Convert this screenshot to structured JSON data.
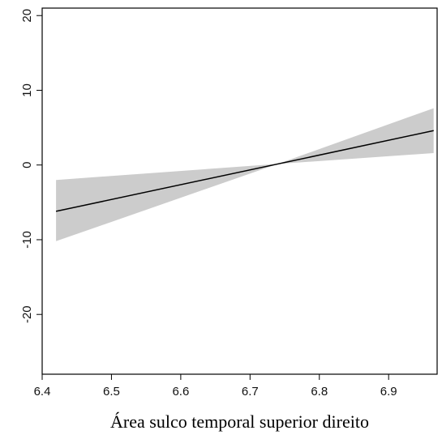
{
  "chart_data": {
    "type": "line",
    "title": "",
    "xlabel": "Área sulco temporal superior direito",
    "ylabel": "",
    "xlim": [
      6.4,
      6.97
    ],
    "ylim": [
      -28,
      21
    ],
    "xticks": [
      6.4,
      6.5,
      6.6,
      6.7,
      6.8,
      6.9
    ],
    "xtick_labels": [
      "6.4",
      "6.5",
      "6.6",
      "6.7",
      "6.8",
      "6.9"
    ],
    "yticks": [
      -20,
      -10,
      0,
      10,
      20
    ],
    "ytick_labels": [
      "-20",
      "-10",
      "0",
      "10",
      "20"
    ],
    "grid": false,
    "series": [
      {
        "x": [
          6.42,
          6.965
        ],
        "y": [
          -6.2,
          4.6
        ],
        "ci_upper": [
          -2.0,
          7.6
        ],
        "ci_lower": [
          -10.2,
          1.6
        ],
        "line_color": "#000000",
        "band_color": "#cccccc"
      }
    ]
  }
}
